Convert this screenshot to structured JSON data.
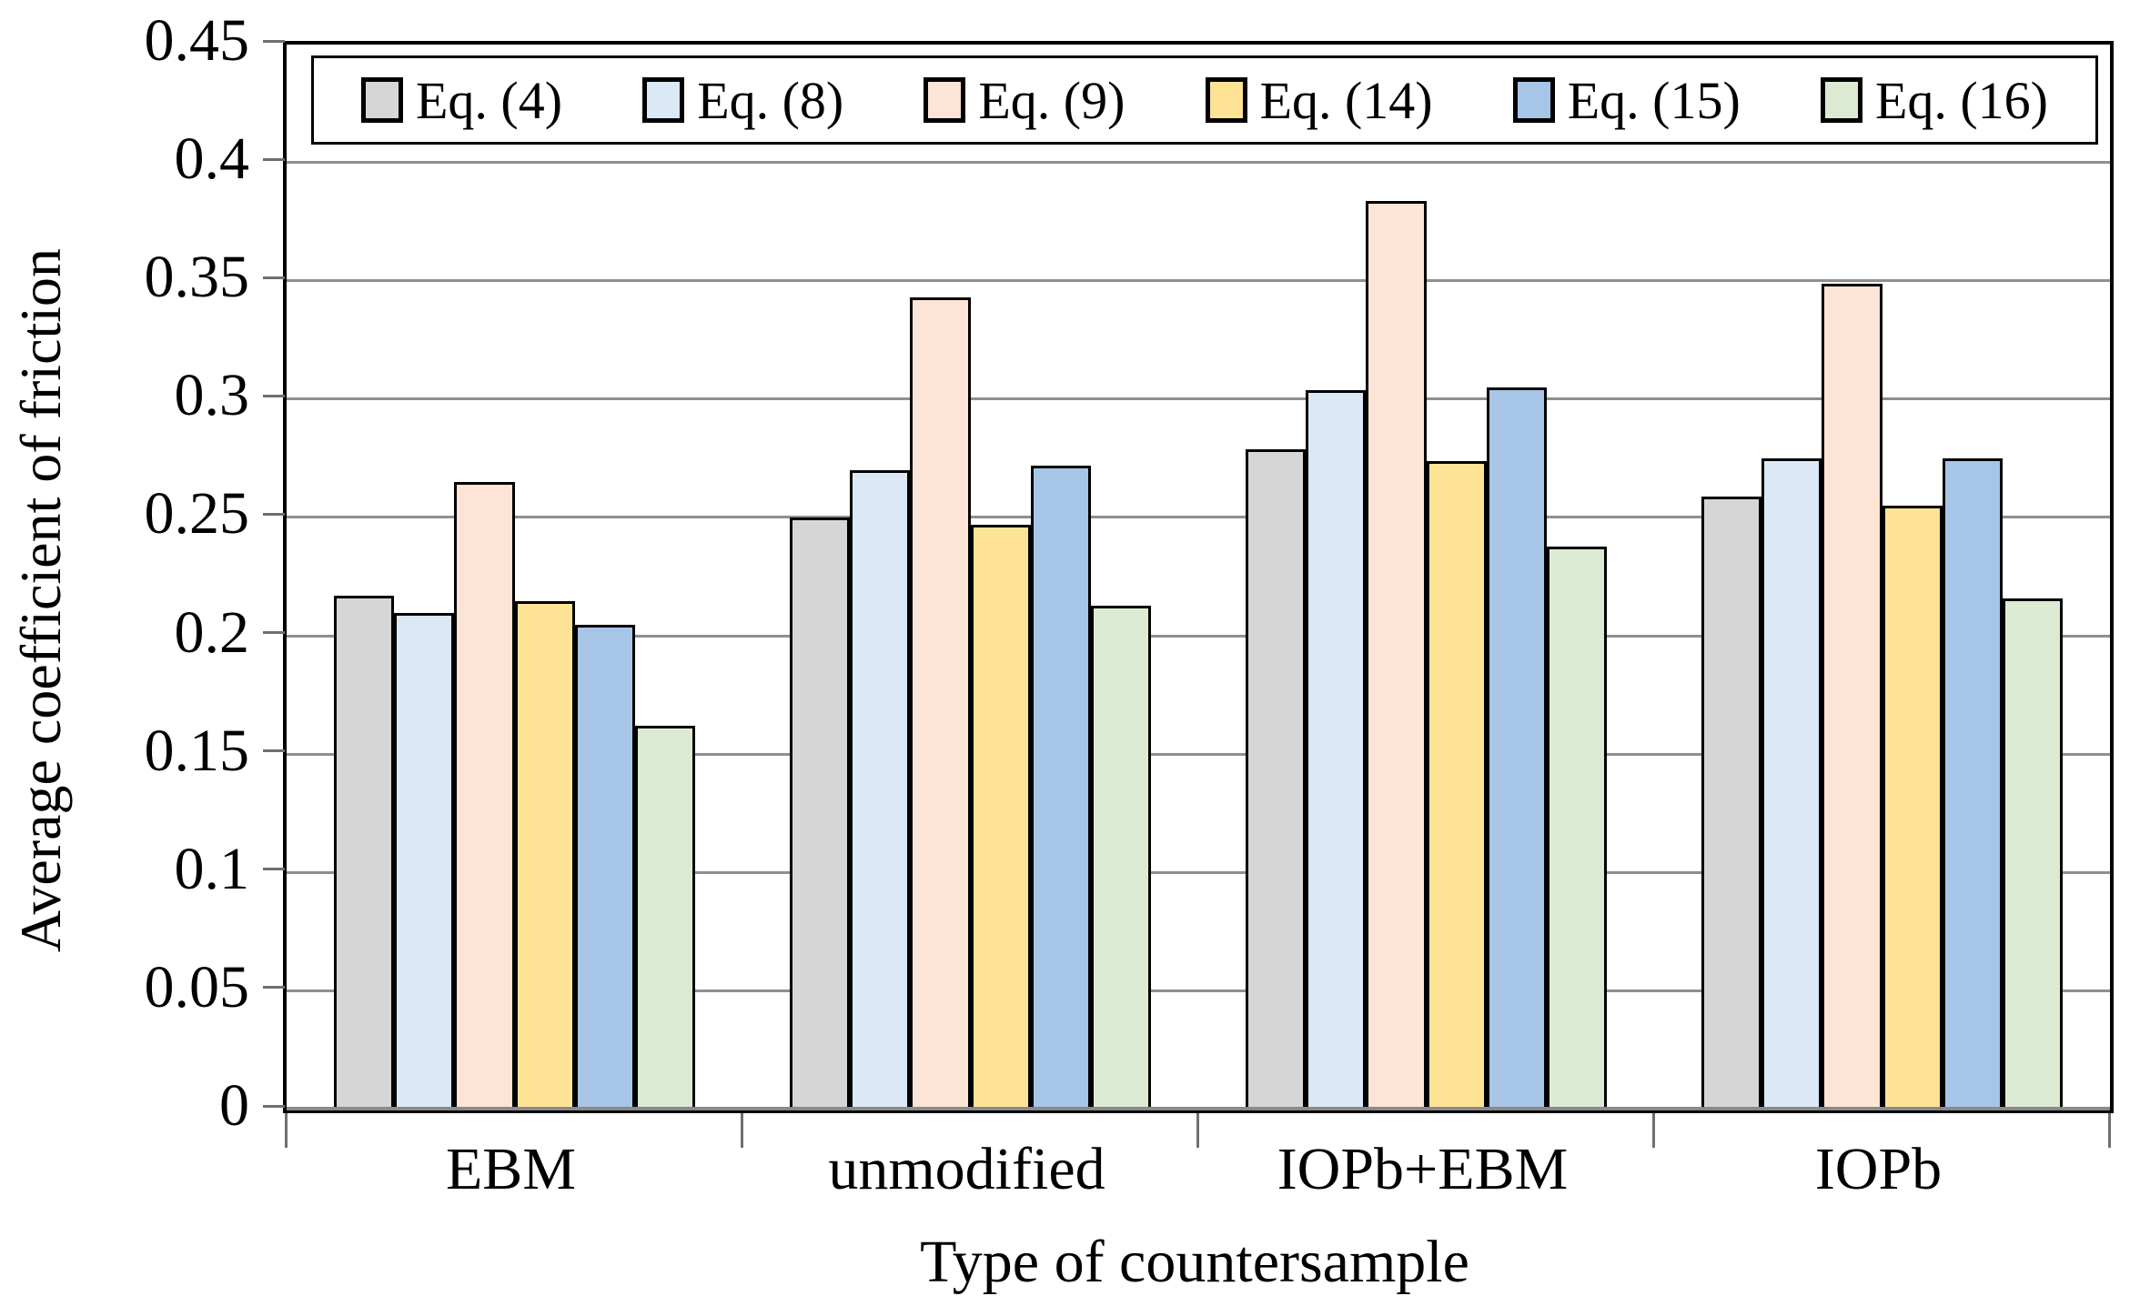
{
  "chart_data": {
    "type": "bar",
    "title": "",
    "xlabel": "Type of countersample",
    "ylabel": "Average coefficient of friction",
    "ylim": [
      0,
      0.45
    ],
    "ytick_values": [
      0,
      0.05,
      0.1,
      0.15,
      0.2,
      0.25,
      0.3,
      0.35,
      0.4,
      0.45
    ],
    "ytick_labels": [
      "0",
      "0.05",
      "0.1",
      "0.15",
      "0.2",
      "0.25",
      "0.3",
      "0.35",
      "0.4",
      "0.45"
    ],
    "categories": [
      "EBM",
      "unmodified",
      "IOPb+EBM",
      "IOPb"
    ],
    "series": [
      {
        "name": "Eq. (4)",
        "color": "#d6d6d6",
        "values": [
          0.217,
          0.25,
          0.279,
          0.259
        ]
      },
      {
        "name": "Eq. (8)",
        "color": "#dbe9f6",
        "values": [
          0.21,
          0.27,
          0.304,
          0.275
        ]
      },
      {
        "name": "Eq. (9)",
        "color": "#fce4d6",
        "values": [
          0.265,
          0.343,
          0.384,
          0.349
        ]
      },
      {
        "name": "Eq. (14)",
        "color": "#ffe395",
        "values": [
          0.215,
          0.247,
          0.274,
          0.255
        ]
      },
      {
        "name": "Eq. (15)",
        "color": "#a7c5e7",
        "values": [
          0.205,
          0.272,
          0.305,
          0.275
        ]
      },
      {
        "name": "Eq. (16)",
        "color": "#dcead4",
        "values": [
          0.162,
          0.213,
          0.238,
          0.216
        ]
      }
    ],
    "legend_position": "top-inside",
    "grid": true,
    "grid_color": "#8f8f8f",
    "axis_color": "#000000",
    "tick_color": "#6f6f6f",
    "bar_border_color": "#000000"
  }
}
